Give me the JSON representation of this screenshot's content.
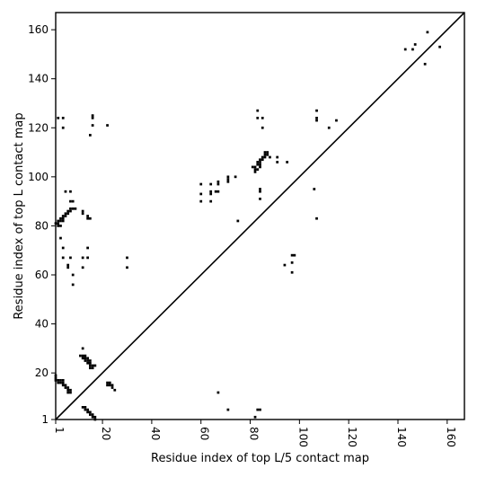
{
  "chart_data": {
    "type": "heatmap",
    "title": "",
    "xlabel": "Residue index of top L/5 contact map",
    "ylabel": "Residue index of top L contact map",
    "xlim": [
      1,
      167
    ],
    "ylim": [
      1,
      167
    ],
    "x_ticks": [
      1,
      20,
      40,
      60,
      80,
      100,
      120,
      140,
      160
    ],
    "y_ticks": [
      1,
      20,
      40,
      60,
      80,
      100,
      120,
      140,
      160
    ],
    "x_tick_labels": [
      "1",
      "20",
      "40",
      "60",
      "80",
      "100",
      "120",
      "140",
      "160"
    ],
    "y_tick_labels": [
      "1",
      "20",
      "40",
      "60",
      "80",
      "100",
      "120",
      "140",
      "160"
    ],
    "diagonal": [
      [
        1,
        1
      ],
      [
        167,
        167
      ]
    ],
    "mark_color": "#000000",
    "grid": false,
    "lower_contacts": [
      [
        1,
        19
      ],
      [
        1,
        18
      ],
      [
        1,
        17
      ],
      [
        2,
        17
      ],
      [
        2,
        16
      ],
      [
        3,
        16
      ],
      [
        3,
        17
      ],
      [
        4,
        17
      ],
      [
        4,
        16
      ],
      [
        4,
        15
      ],
      [
        5,
        15
      ],
      [
        5,
        14
      ],
      [
        6,
        14
      ],
      [
        6,
        13
      ],
      [
        6,
        12
      ],
      [
        7,
        13
      ],
      [
        7,
        12
      ],
      [
        12,
        30
      ],
      [
        11,
        27
      ],
      [
        12,
        27
      ],
      [
        12,
        26
      ],
      [
        13,
        27
      ],
      [
        13,
        26
      ],
      [
        13,
        25
      ],
      [
        14,
        26
      ],
      [
        14,
        25
      ],
      [
        14,
        24
      ],
      [
        15,
        25
      ],
      [
        15,
        24
      ],
      [
        15,
        23
      ],
      [
        15,
        22
      ],
      [
        16,
        23
      ],
      [
        16,
        22
      ],
      [
        17,
        23
      ],
      [
        22,
        16
      ],
      [
        22,
        15
      ],
      [
        23,
        16
      ],
      [
        23,
        15
      ],
      [
        24,
        15
      ],
      [
        24,
        14
      ],
      [
        25,
        13
      ],
      [
        12,
        6
      ],
      [
        13,
        6
      ],
      [
        13,
        5
      ],
      [
        14,
        5
      ],
      [
        14,
        4
      ],
      [
        15,
        4
      ],
      [
        15,
        3
      ],
      [
        16,
        3
      ],
      [
        16,
        2
      ],
      [
        17,
        2
      ],
      [
        17,
        1
      ],
      [
        67,
        12
      ],
      [
        71,
        5
      ],
      [
        82,
        2
      ],
      [
        83,
        5
      ],
      [
        84,
        5
      ]
    ],
    "upper_contacts": [
      [
        1,
        81
      ],
      [
        2,
        81
      ],
      [
        2,
        82
      ],
      [
        3,
        82
      ],
      [
        3,
        83
      ],
      [
        4,
        83
      ],
      [
        4,
        84
      ],
      [
        5,
        84
      ],
      [
        5,
        85
      ],
      [
        6,
        85
      ],
      [
        6,
        86
      ],
      [
        7,
        86
      ],
      [
        7,
        87
      ],
      [
        8,
        87
      ],
      [
        9,
        87
      ],
      [
        2,
        80
      ],
      [
        3,
        80
      ],
      [
        4,
        82
      ],
      [
        5,
        94
      ],
      [
        7,
        94
      ],
      [
        7,
        90
      ],
      [
        8,
        90
      ],
      [
        3,
        75
      ],
      [
        4,
        71
      ],
      [
        4,
        67
      ],
      [
        7,
        67
      ],
      [
        6,
        64
      ],
      [
        6,
        63
      ],
      [
        8,
        60
      ],
      [
        8,
        56
      ],
      [
        12,
        67
      ],
      [
        12,
        63
      ],
      [
        14,
        71
      ],
      [
        14,
        67
      ],
      [
        12,
        86
      ],
      [
        12,
        85
      ],
      [
        14,
        84
      ],
      [
        14,
        83
      ],
      [
        15,
        83
      ],
      [
        2,
        124
      ],
      [
        4,
        124
      ],
      [
        4,
        120
      ],
      [
        16,
        125
      ],
      [
        16,
        124
      ],
      [
        16,
        121
      ],
      [
        15,
        117
      ],
      [
        22,
        121
      ],
      [
        30,
        67
      ],
      [
        30,
        63
      ],
      [
        60,
        97
      ],
      [
        60,
        93
      ],
      [
        60,
        90
      ],
      [
        64,
        97
      ],
      [
        64,
        94
      ],
      [
        64,
        93
      ],
      [
        64,
        90
      ],
      [
        67,
        98
      ],
      [
        67,
        97
      ],
      [
        67,
        94
      ],
      [
        66,
        94
      ],
      [
        71,
        100
      ],
      [
        71,
        99
      ],
      [
        71,
        98
      ],
      [
        74,
        100
      ],
      [
        75,
        82
      ],
      [
        81,
        104
      ],
      [
        82,
        104
      ],
      [
        82,
        103
      ],
      [
        82,
        102
      ],
      [
        83,
        103
      ],
      [
        83,
        105
      ],
      [
        83,
        106
      ],
      [
        84,
        104
      ],
      [
        84,
        105
      ],
      [
        84,
        106
      ],
      [
        84,
        107
      ],
      [
        85,
        107
      ],
      [
        85,
        108
      ],
      [
        86,
        108
      ],
      [
        86,
        109
      ],
      [
        86,
        110
      ],
      [
        87,
        109
      ],
      [
        87,
        110
      ],
      [
        88,
        108
      ],
      [
        83,
        127
      ],
      [
        83,
        124
      ],
      [
        85,
        124
      ],
      [
        85,
        120
      ],
      [
        84,
        95
      ],
      [
        84,
        94
      ],
      [
        84,
        91
      ],
      [
        91,
        108
      ],
      [
        91,
        106
      ],
      [
        95,
        106
      ],
      [
        94,
        64
      ],
      [
        97,
        68
      ],
      [
        98,
        68
      ],
      [
        97,
        65
      ],
      [
        97,
        61
      ],
      [
        106,
        95
      ],
      [
        107,
        127
      ],
      [
        107,
        124
      ],
      [
        107,
        123
      ],
      [
        107,
        83
      ],
      [
        112,
        120
      ],
      [
        115,
        123
      ],
      [
        143,
        152
      ],
      [
        146,
        152
      ],
      [
        147,
        154
      ],
      [
        151,
        146
      ],
      [
        152,
        159
      ],
      [
        157,
        153
      ]
    ]
  }
}
